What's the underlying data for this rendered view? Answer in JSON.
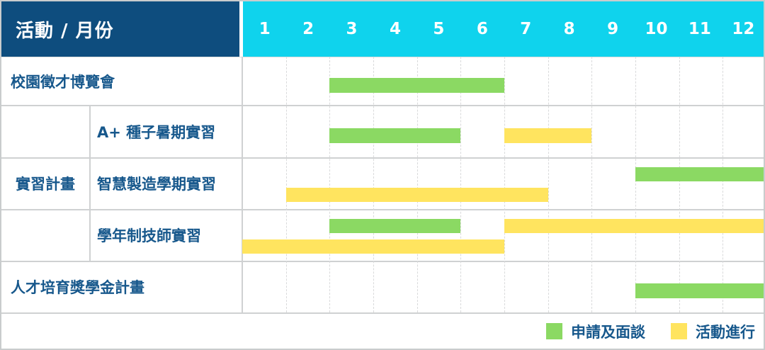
{
  "header": {
    "title": "活動 / 月份",
    "months": [
      "1",
      "2",
      "3",
      "4",
      "5",
      "6",
      "7",
      "8",
      "9",
      "10",
      "11",
      "12"
    ]
  },
  "colors": {
    "navy": "#0E4D7E",
    "cyan": "#0FD3ED",
    "green": "#8BD963",
    "yellow": "#FFE45F",
    "label_text": "#17588C",
    "header_text": "#FFFFFF",
    "grid": "#CFD1D2"
  },
  "group_label": "實習計畫",
  "rows": [
    {
      "label": "校園徵才博覽會"
    },
    {
      "label": "A+ 種子暑期實習",
      "group": "實習計畫"
    },
    {
      "label": "智慧製造學期實習",
      "group": "實習計畫"
    },
    {
      "label": "學年制技師實習",
      "group": "實習計畫"
    },
    {
      "label": "人才培育獎學金計畫"
    }
  ],
  "legend": [
    {
      "label": "申請及面談",
      "color": "#8BD963"
    },
    {
      "label": "活動進行",
      "color": "#FFE45F"
    }
  ],
  "chart_data": {
    "type": "bar",
    "subtype": "gantt",
    "title": "活動 / 月份",
    "x": {
      "label": "月份",
      "ticks": [
        1,
        2,
        3,
        4,
        5,
        6,
        7,
        8,
        9,
        10,
        11,
        12
      ],
      "range": [
        1,
        12
      ]
    },
    "grid": "dashed-vertical-monthly",
    "legend_position": "bottom-right",
    "series_legend": [
      {
        "name": "申請及面談",
        "color": "#8BD963"
      },
      {
        "name": "活動進行",
        "color": "#FFE45F"
      }
    ],
    "tasks": [
      {
        "row": 0,
        "group": "",
        "activity": "校園徵才博覽會",
        "bars": [
          {
            "series": "申請及面談",
            "start_month": 3,
            "end_month": 6,
            "lane": "single"
          }
        ]
      },
      {
        "row": 1,
        "group": "實習計畫",
        "activity": "A+ 種子暑期實習",
        "bars": [
          {
            "series": "申請及面談",
            "start_month": 3,
            "end_month": 5,
            "lane": "single"
          },
          {
            "series": "活動進行",
            "start_month": 7,
            "end_month": 8,
            "lane": "single"
          }
        ]
      },
      {
        "row": 2,
        "group": "實習計畫",
        "activity": "智慧製造學期實習",
        "bars": [
          {
            "series": "申請及面談",
            "start_month": 10,
            "end_month": 12,
            "lane": "top"
          },
          {
            "series": "活動進行",
            "start_month": 2,
            "end_month": 7,
            "lane": "bottom"
          }
        ]
      },
      {
        "row": 3,
        "group": "實習計畫",
        "activity": "學年制技師實習",
        "bars": [
          {
            "series": "申請及面談",
            "start_month": 3,
            "end_month": 5,
            "lane": "top"
          },
          {
            "series": "活動進行",
            "start_month": 7,
            "end_month": 12,
            "lane": "top"
          },
          {
            "series": "活動進行",
            "start_month": 1,
            "end_month": 6,
            "lane": "bottom"
          }
        ]
      },
      {
        "row": 4,
        "group": "",
        "activity": "人才培育獎學金計畫",
        "bars": [
          {
            "series": "申請及面談",
            "start_month": 10,
            "end_month": 12,
            "lane": "single"
          }
        ]
      }
    ]
  }
}
